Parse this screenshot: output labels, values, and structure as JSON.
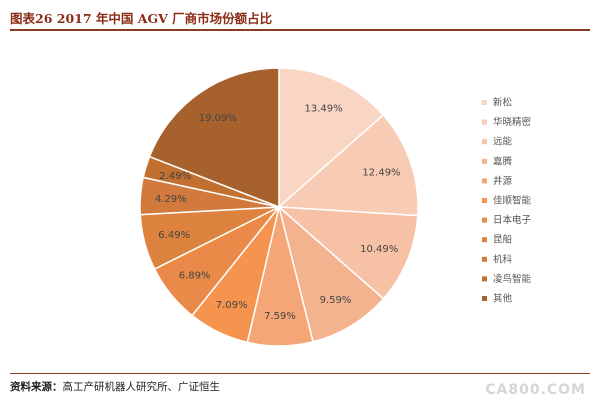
{
  "header": {
    "title": "图表26 2017 年中国 AGV 厂商市场份额占比"
  },
  "footer": {
    "source_label": "资料来源：",
    "source_text": "高工产研机器人研究所、广证恒生"
  },
  "watermark": {
    "text": "CA800.COM"
  },
  "chart_data": {
    "type": "pie",
    "start_angle_deg": 0,
    "direction": "clockwise",
    "legend_position": "right",
    "slices": [
      {
        "name": "新松",
        "value": 13.49,
        "label": "13.49%",
        "color": "#f9d6c4"
      },
      {
        "name": "华晓精密",
        "value": 12.49,
        "label": "12.49%",
        "color": "#f8cbb4"
      },
      {
        "name": "远能",
        "value": 10.49,
        "label": "10.49%",
        "color": "#f7c1a6"
      },
      {
        "name": "嘉腾",
        "value": 9.59,
        "label": "9.59%",
        "color": "#f4b38f"
      },
      {
        "name": "井源",
        "value": 7.59,
        "label": "7.59%",
        "color": "#f5a676"
      },
      {
        "name": "佳顺智能",
        "value": 7.09,
        "label": "7.09%",
        "color": "#f5944e"
      },
      {
        "name": "日本电子",
        "value": 6.89,
        "label": "6.89%",
        "color": "#ea8a48"
      },
      {
        "name": "昆船",
        "value": 6.49,
        "label": "6.49%",
        "color": "#de8240"
      },
      {
        "name": "机科",
        "value": 4.29,
        "label": "4.29%",
        "color": "#d27a3d"
      },
      {
        "name": "凌鸟智能",
        "value": 2.49,
        "label": "2.49%",
        "color": "#c2702f"
      },
      {
        "name": "其他",
        "value": 19.09,
        "label": "19.09%",
        "color": "#a6612c"
      }
    ]
  }
}
